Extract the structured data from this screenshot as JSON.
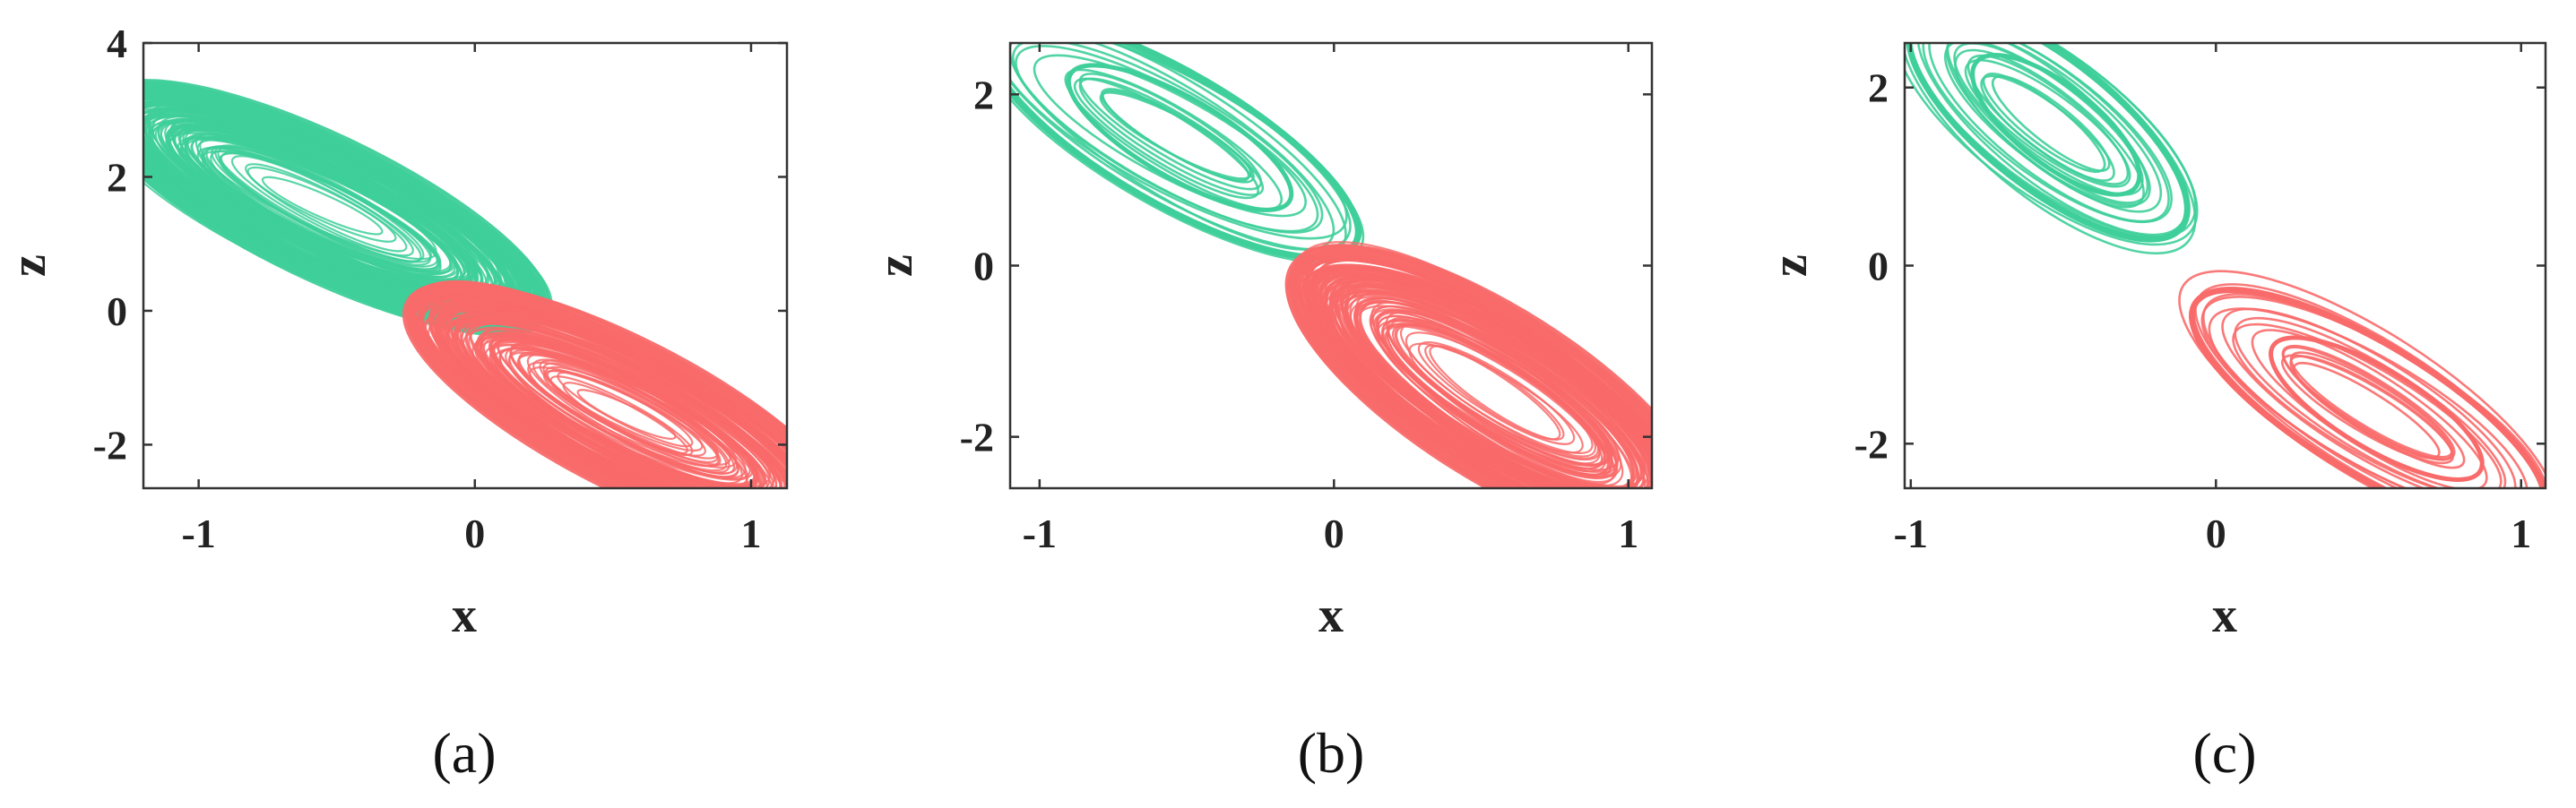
{
  "chart_data": [
    {
      "panel_label": "(a)",
      "type": "line",
      "xlabel": "x",
      "ylabel": "z",
      "xlim": [
        -1.2,
        1.13
      ],
      "ylim": [
        -2.65,
        4.0
      ],
      "xticks": [
        -1,
        0,
        1
      ],
      "xtick_labels": [
        "-1",
        "0",
        "1"
      ],
      "yticks": [
        -2,
        0,
        2,
        4
      ],
      "ytick_labels": [
        "-2",
        "0",
        "2",
        "4"
      ],
      "series": [
        {
          "color": "#3ecf9a",
          "center": [
            -0.55,
            1.55
          ],
          "x_range": [
            -1.2,
            0.44
          ],
          "z_range": [
            -0.65,
            2.6
          ],
          "density": "dense"
        },
        {
          "color": "#f96a6a",
          "center": [
            0.55,
            -1.55
          ],
          "x_range": [
            -0.48,
            1.13
          ],
          "z_range": [
            -2.65,
            0.75
          ],
          "density": "dense"
        }
      ]
    },
    {
      "panel_label": "(b)",
      "type": "line",
      "xlabel": "x",
      "ylabel": "z",
      "xlim": [
        -1.1,
        1.08
      ],
      "ylim": [
        -2.6,
        2.6
      ],
      "xticks": [
        -1,
        0,
        1
      ],
      "xtick_labels": [
        "-1",
        "0",
        "1"
      ],
      "yticks": [
        -2,
        0,
        2
      ],
      "ytick_labels": [
        "-2",
        "0",
        "2"
      ],
      "series": [
        {
          "color": "#3ecf9a",
          "center": [
            -0.55,
            1.5
          ],
          "x_range": [
            -1.1,
            0.28
          ],
          "z_range": [
            -0.15,
            2.6
          ],
          "density": "sparse"
        },
        {
          "color": "#f96a6a",
          "center": [
            0.55,
            -1.5
          ],
          "x_range": [
            -0.32,
            1.08
          ],
          "z_range": [
            -2.6,
            0.45
          ],
          "density": "dense"
        }
      ]
    },
    {
      "panel_label": "(c)",
      "type": "line",
      "xlabel": "x",
      "ylabel": "z",
      "xlim": [
        -1.02,
        1.08
      ],
      "ylim": [
        -2.5,
        2.5
      ],
      "xticks": [
        -1,
        0,
        1
      ],
      "xtick_labels": [
        "-1",
        "0",
        "1"
      ],
      "yticks": [
        -2,
        0,
        2
      ],
      "ytick_labels": [
        "-2",
        "0",
        "2"
      ],
      "series": [
        {
          "color": "#3ecf9a",
          "center": [
            -0.55,
            1.6
          ],
          "x_range": [
            -1.02,
            -0.05
          ],
          "z_range": [
            -0.1,
            2.5
          ],
          "density": "sparse"
        },
        {
          "color": "#f96a6a",
          "center": [
            0.5,
            -1.6
          ],
          "x_range": [
            -0.18,
            1.08
          ],
          "z_range": [
            -2.5,
            0.1
          ],
          "density": "sparse"
        }
      ]
    }
  ]
}
